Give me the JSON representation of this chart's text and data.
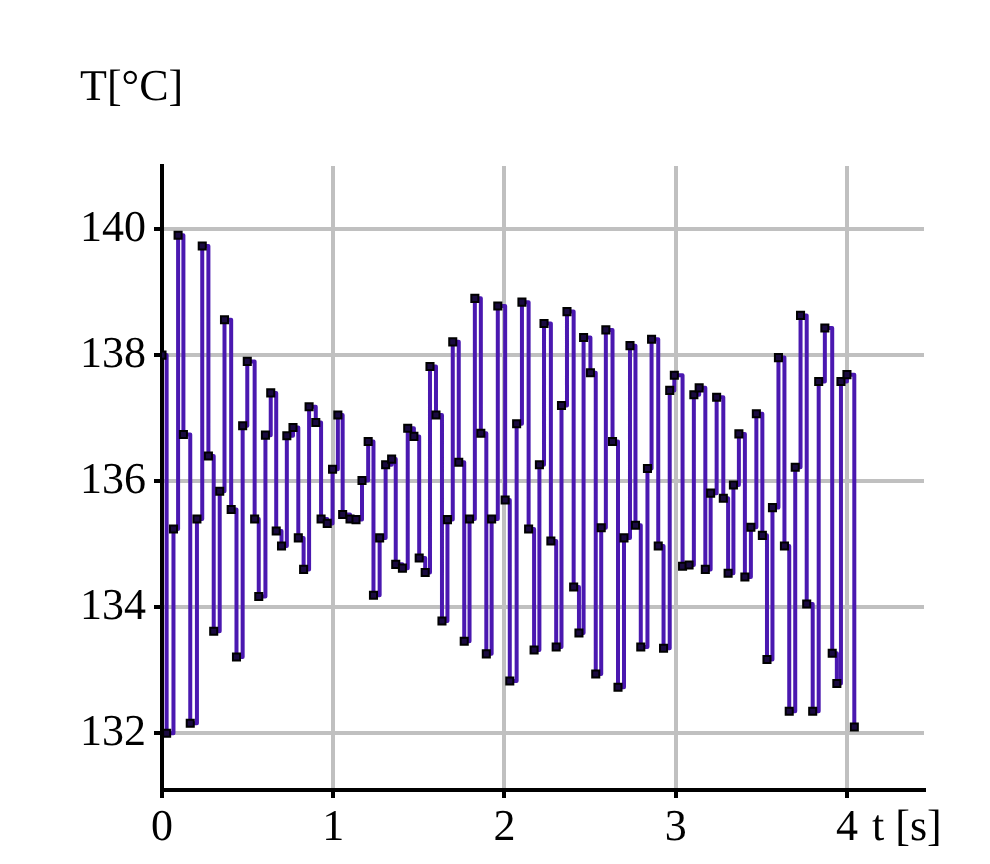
{
  "chart_data": {
    "type": "step",
    "xlabel": "t [s]",
    "ylabel": "T[°C]",
    "xlim": [
      0,
      4.45
    ],
    "ylim": [
      131.1,
      141
    ],
    "xticks": [
      0,
      1,
      2,
      3,
      4
    ],
    "yticks": [
      132,
      134,
      136,
      138,
      140
    ],
    "grid": true,
    "marker": "square",
    "line_style": "solid",
    "legend": false,
    "series": [
      {
        "color": "#4a18b0",
        "x": [
          0,
          0.027,
          0.067,
          0.094,
          0.125,
          0.165,
          0.204,
          0.235,
          0.271,
          0.302,
          0.337,
          0.365,
          0.404,
          0.435,
          0.471,
          0.498,
          0.541,
          0.565,
          0.604,
          0.635,
          0.667,
          0.698,
          0.729,
          0.765,
          0.796,
          0.827,
          0.859,
          0.898,
          0.929,
          0.965,
          0.996,
          1.027,
          1.055,
          1.098,
          1.133,
          1.168,
          1.204,
          1.235,
          1.271,
          1.306,
          1.341,
          1.365,
          1.404,
          1.435,
          1.471,
          1.502,
          1.537,
          1.565,
          1.6,
          1.635,
          1.667,
          1.698,
          1.733,
          1.765,
          1.796,
          1.827,
          1.862,
          1.894,
          1.925,
          1.961,
          2.004,
          2.031,
          2.071,
          2.102,
          2.141,
          2.173,
          2.204,
          2.231,
          2.271,
          2.302,
          2.333,
          2.365,
          2.404,
          2.435,
          2.462,
          2.502,
          2.533,
          2.565,
          2.592,
          2.631,
          2.663,
          2.698,
          2.733,
          2.765,
          2.796,
          2.835,
          2.859,
          2.898,
          2.929,
          2.965,
          2.992,
          3.04,
          3.078,
          3.106,
          3.137,
          3.173,
          3.204,
          3.239,
          3.278,
          3.306,
          3.337,
          3.369,
          3.404,
          3.439,
          3.471,
          3.506,
          3.533,
          3.565,
          3.6,
          3.635,
          3.663,
          3.698,
          3.729,
          3.765,
          3.8,
          3.835,
          3.871,
          3.914,
          3.941,
          3.965,
          4.0,
          4.043
        ],
        "values": [
          138.0,
          132.0,
          135.24,
          139.9,
          136.74,
          132.16,
          135.4,
          139.73,
          136.4,
          133.62,
          135.84,
          138.56,
          135.55,
          133.21,
          136.88,
          137.9,
          135.4,
          134.17,
          136.73,
          137.4,
          135.21,
          134.97,
          136.72,
          136.85,
          135.1,
          134.6,
          137.18,
          136.93,
          135.4,
          135.33,
          136.19,
          137.05,
          135.47,
          135.4,
          135.39,
          136.01,
          136.63,
          134.19,
          135.1,
          136.26,
          136.35,
          134.68,
          134.62,
          136.84,
          136.71,
          134.78,
          134.55,
          137.82,
          137.05,
          133.78,
          135.39,
          138.21,
          136.3,
          133.46,
          135.4,
          138.9,
          136.76,
          133.26,
          135.4,
          138.78,
          135.7,
          132.83,
          136.91,
          138.84,
          135.24,
          133.32,
          136.26,
          138.5,
          135.05,
          133.37,
          137.2,
          138.69,
          134.32,
          133.59,
          138.28,
          137.72,
          132.94,
          135.26,
          138.4,
          136.63,
          132.73,
          135.1,
          138.15,
          135.3,
          133.37,
          136.2,
          138.25,
          134.97,
          133.35,
          137.44,
          137.68,
          134.65,
          134.67,
          137.37,
          137.48,
          134.6,
          135.81,
          137.33,
          135.73,
          134.54,
          135.94,
          136.75,
          134.48,
          135.27,
          137.07,
          135.14,
          133.17,
          135.58,
          137.96,
          134.97,
          132.35,
          136.22,
          138.63,
          134.05,
          132.35,
          137.58,
          138.43,
          133.27,
          132.79,
          137.58,
          137.69,
          132.1
        ]
      }
    ]
  }
}
